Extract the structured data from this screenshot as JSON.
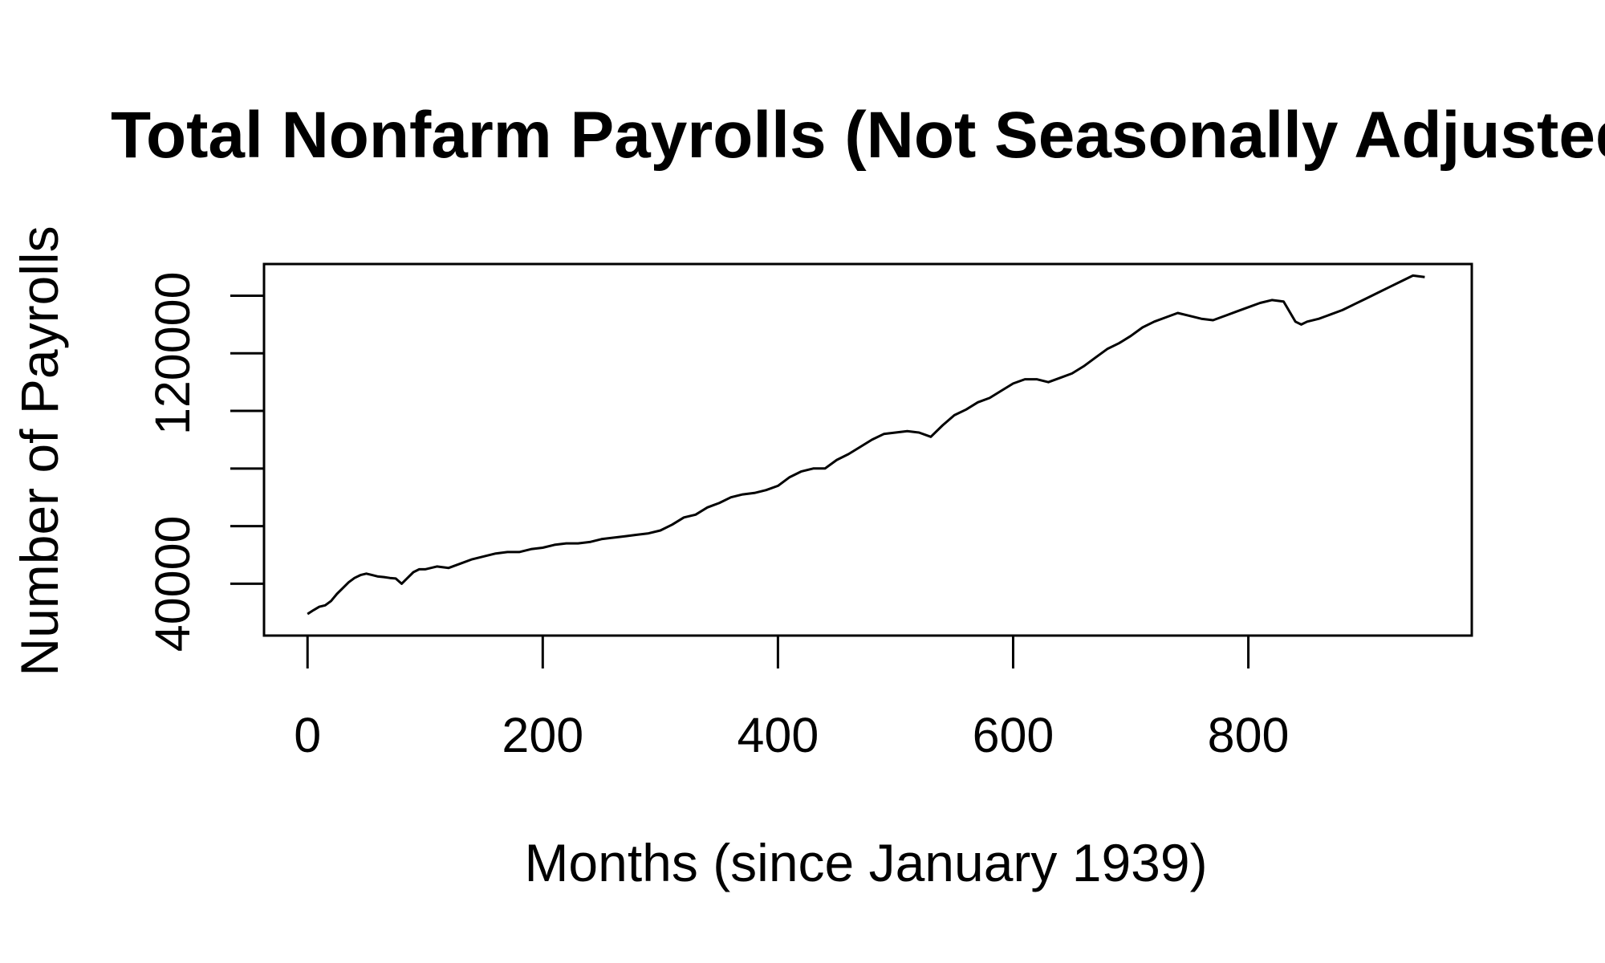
{
  "chart_data": {
    "type": "line",
    "title": "Total Nonfarm Payrolls (Not Seasonally Adjusted)",
    "xlabel": "Months (since January 1939)",
    "ylabel": "Number of Payrolls",
    "xlim": [
      -37,
      990
    ],
    "ylim": [
      22000,
      151000
    ],
    "xticks": [
      0,
      200,
      400,
      600,
      800
    ],
    "yticks": [
      40000,
      60000,
      80000,
      100000,
      120000,
      140000
    ],
    "xtick_labels": [
      "0",
      "200",
      "400",
      "600",
      "800"
    ],
    "ytick_labels": [
      "40000",
      "",
      "",
      "",
      "120000",
      ""
    ],
    "grid": false,
    "line_color": "#000000",
    "series": [
      {
        "x": [
          0,
          5,
          10,
          15,
          20,
          25,
          30,
          35,
          40,
          45,
          50,
          55,
          60,
          65,
          70,
          75,
          80,
          85,
          90,
          95,
          100,
          110,
          120,
          130,
          140,
          150,
          160,
          170,
          180,
          190,
          200,
          210,
          220,
          230,
          240,
          250,
          260,
          270,
          280,
          290,
          300,
          310,
          320,
          330,
          340,
          350,
          360,
          370,
          380,
          390,
          400,
          410,
          420,
          430,
          440,
          450,
          460,
          470,
          480,
          490,
          500,
          510,
          520,
          530,
          540,
          550,
          560,
          570,
          580,
          590,
          600,
          610,
          620,
          630,
          640,
          650,
          660,
          670,
          680,
          690,
          700,
          710,
          720,
          730,
          740,
          750,
          760,
          770,
          780,
          790,
          800,
          810,
          820,
          830,
          840,
          845,
          850,
          860,
          870,
          880,
          890,
          900,
          910,
          920,
          930,
          940,
          950
        ],
        "y": [
          29500,
          30800,
          32000,
          32500,
          34000,
          36500,
          38500,
          40500,
          42000,
          43000,
          43500,
          43000,
          42500,
          42300,
          42000,
          41800,
          40000,
          42000,
          44000,
          45000,
          45000,
          46000,
          45500,
          47000,
          48500,
          49500,
          50500,
          51000,
          51000,
          52000,
          52500,
          53500,
          54000,
          54000,
          54500,
          55500,
          56000,
          56500,
          57000,
          57500,
          58500,
          60500,
          63000,
          64000,
          66500,
          68000,
          70000,
          71000,
          71500,
          72500,
          74000,
          77000,
          79000,
          80000,
          80000,
          83000,
          85000,
          87500,
          90000,
          92000,
          92500,
          93000,
          92500,
          91000,
          95000,
          98500,
          100500,
          103000,
          104500,
          107000,
          109500,
          111000,
          111000,
          110000,
          111500,
          113000,
          115500,
          118500,
          121500,
          123500,
          126000,
          129000,
          131000,
          132500,
          134000,
          133000,
          132000,
          131500,
          133000,
          134500,
          136000,
          137500,
          138500,
          138000,
          131000,
          130000,
          131000,
          132000,
          133500,
          135000,
          137000,
          139000,
          141000,
          143000,
          145000,
          147000,
          146500
        ]
      }
    ]
  }
}
